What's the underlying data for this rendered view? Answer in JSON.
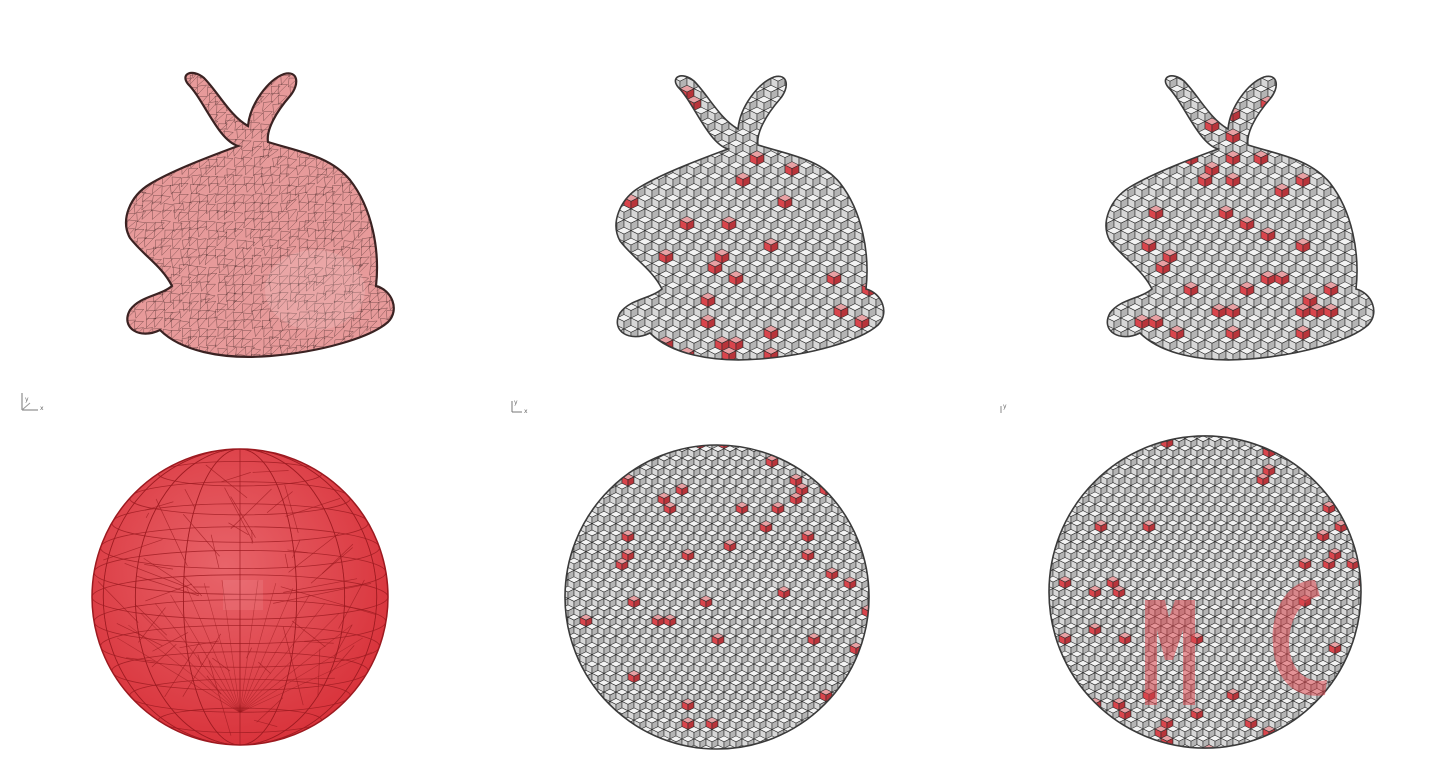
{
  "figure": {
    "rows": [
      {
        "model": "bunny",
        "panels": [
          "triangle-mesh",
          "voxelization-a",
          "voxelization-b"
        ]
      },
      {
        "model": "sphere",
        "panels": [
          "triangle-mesh",
          "voxelization-a",
          "voxelization-b"
        ]
      }
    ],
    "colors": {
      "bunny_mesh_fill": "#e79a9a",
      "bunny_mesh_edge": "#3a2222",
      "sphere_mesh_fill": "#d9343c",
      "sphere_mesh_edge": "#9c1a20",
      "voxel_top": "#f2f2f2",
      "voxel_left": "#d7d7d7",
      "voxel_right": "#b4b4b4",
      "voxel_edge": "#2b2b2b",
      "highlight": "#d9454c"
    },
    "axis_labels": {
      "panel1": {
        "y": "y",
        "x": "x"
      },
      "panel2": {
        "y": "y",
        "x": "x"
      },
      "panel3": {
        "y": "y"
      }
    }
  }
}
